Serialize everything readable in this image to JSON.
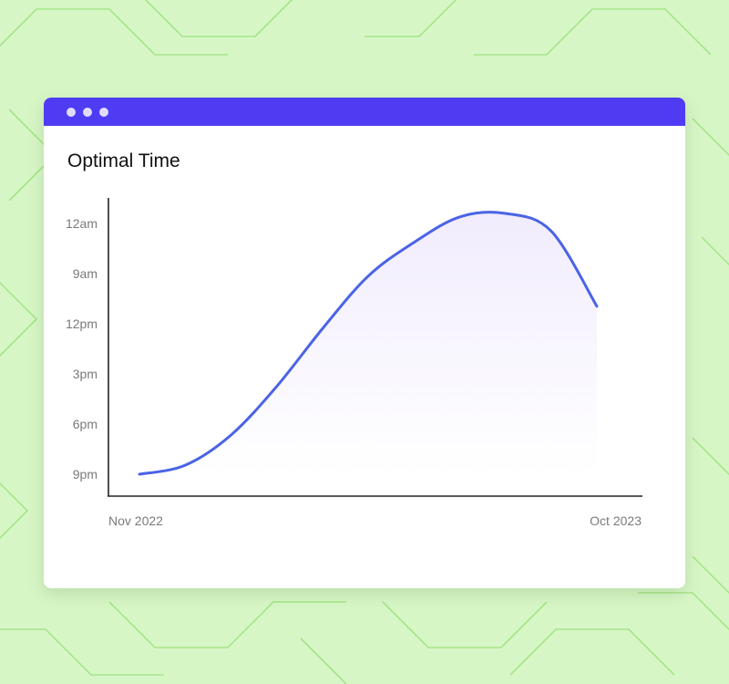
{
  "colors": {
    "background": "#d7f6c6",
    "pattern_line": "#a6e58a",
    "titlebar": "#4f3cf2",
    "curve": "#4a63e6",
    "fill_top": "#f1ecfd",
    "axis": "#222222",
    "label": "#7a7a7a"
  },
  "window": {
    "controls": [
      "window-dot",
      "window-dot",
      "window-dot"
    ]
  },
  "chart_data": {
    "type": "area",
    "title": "Optimal Time",
    "xlabel": "",
    "ylabel": "",
    "x_tick_labels": [
      "Nov 2022",
      "Oct 2023"
    ],
    "y_tick_labels": [
      "9pm",
      "6pm",
      "3pm",
      "12pm",
      "9am",
      "12am"
    ],
    "grid": false,
    "legend": "none",
    "series": [
      {
        "x": [
          0,
          0.1,
          0.2,
          0.3,
          0.4,
          0.5,
          0.6,
          0.7,
          0.8,
          0.9,
          1.0
        ],
        "y": [
          0,
          0.18,
          0.78,
          1.75,
          2.9,
          3.95,
          4.62,
          5.13,
          5.2,
          4.85,
          3.35
        ]
      }
    ]
  }
}
